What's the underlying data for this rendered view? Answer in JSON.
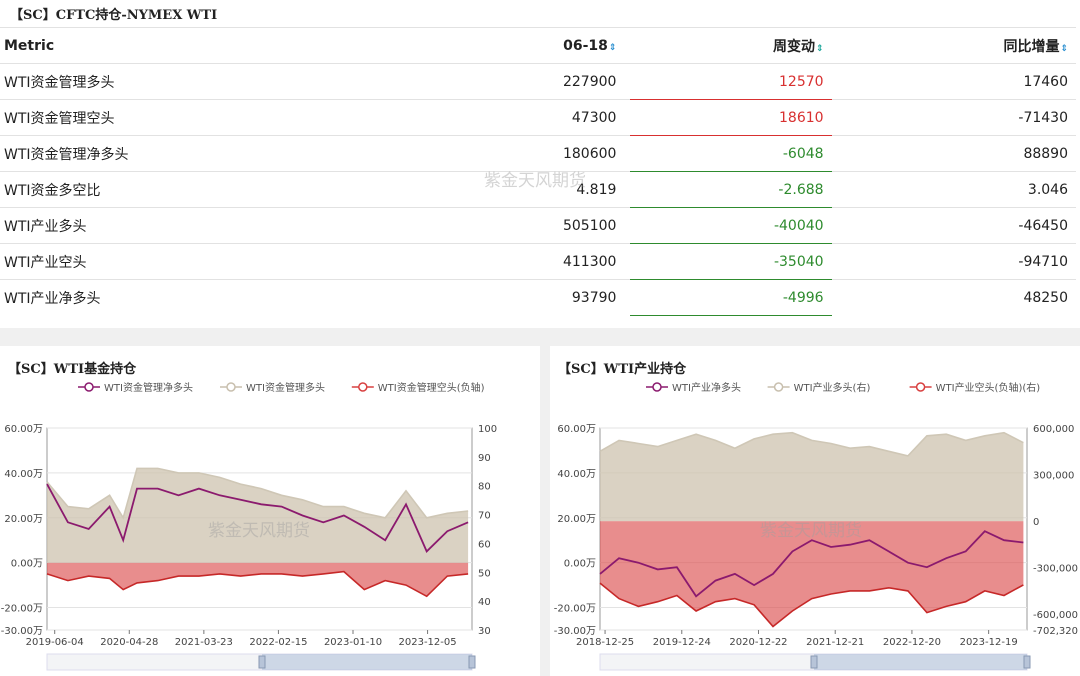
{
  "table": {
    "title": "【SC】CFTC持仓-NYMEX WTI",
    "columns": [
      "Metric",
      "06-18",
      "周变动",
      "同比增量"
    ],
    "rows": [
      {
        "metric": "WTI资金管理多头",
        "value": "227900",
        "change": "12570",
        "change_color": "#d83030",
        "yoy": "17460"
      },
      {
        "metric": "WTI资金管理空头",
        "value": "47300",
        "change": "18610",
        "change_color": "#d83030",
        "yoy": "-71430"
      },
      {
        "metric": "WTI资金管理净多头",
        "value": "180600",
        "change": "-6048",
        "change_color": "#2e8b2e",
        "yoy": "88890"
      },
      {
        "metric": "WTI资金多空比",
        "value": "4.819",
        "change": "-2.688",
        "change_color": "#2e8b2e",
        "yoy": "3.046"
      },
      {
        "metric": "WTI产业多头",
        "value": "505100",
        "change": "-40040",
        "change_color": "#2e8b2e",
        "yoy": "-46450"
      },
      {
        "metric": "WTI产业空头",
        "value": "411300",
        "change": "-35040",
        "change_color": "#2e8b2e",
        "yoy": "-94710"
      },
      {
        "metric": "WTI产业净多头",
        "value": "93790",
        "change": "-4996",
        "change_color": "#2e8b2e",
        "yoy": "48250"
      }
    ],
    "watermark": "紫金天风期货"
  },
  "chart_data": [
    {
      "type": "area",
      "title": "【SC】WTI基金持仓",
      "watermark": "紫金天风期货",
      "x_ticks": [
        "2019-06-04",
        "2020-04-28",
        "2021-03-23",
        "2022-02-15",
        "2023-01-10",
        "2023-12-05"
      ],
      "x_range": [
        "2019-05-01",
        "2024-06-18"
      ],
      "left_axis": {
        "ticks": [
          "60.00万",
          "40.00万",
          "20.00万",
          "0.00万",
          "-20.00万",
          "-30.00万"
        ],
        "values": [
          60,
          40,
          20,
          0,
          -20,
          -30
        ],
        "range": [
          -30,
          60
        ],
        "unit": "万"
      },
      "right_axis": {
        "ticks": [
          "100",
          "90",
          "80",
          "70",
          "60",
          "50",
          "40",
          "30"
        ],
        "range": [
          30,
          100
        ]
      },
      "series": [
        {
          "name": "WTI资金管理净多头",
          "color": "#8b1a6e",
          "axis": "left",
          "kind": "line",
          "x": [
            "2019-05",
            "2019-08",
            "2019-11",
            "2020-02",
            "2020-04",
            "2020-06",
            "2020-09",
            "2020-12",
            "2021-03",
            "2021-06",
            "2021-09",
            "2021-12",
            "2022-03",
            "2022-06",
            "2022-09",
            "2022-12",
            "2023-03",
            "2023-06",
            "2023-09",
            "2023-12",
            "2024-03",
            "2024-06"
          ],
          "y": [
            35,
            18,
            15,
            25,
            10,
            33,
            33,
            30,
            33,
            30,
            28,
            26,
            25,
            21,
            18,
            21,
            16,
            10,
            26,
            5,
            14,
            18
          ]
        },
        {
          "name": "WTI资金管理多头",
          "color": "#d8cfc0",
          "axis": "left",
          "kind": "area",
          "x": [
            "2019-05",
            "2019-08",
            "2019-11",
            "2020-02",
            "2020-04",
            "2020-06",
            "2020-09",
            "2020-12",
            "2021-03",
            "2021-06",
            "2021-09",
            "2021-12",
            "2022-03",
            "2022-06",
            "2022-09",
            "2022-12",
            "2023-03",
            "2023-06",
            "2023-09",
            "2023-12",
            "2024-03",
            "2024-06"
          ],
          "y": [
            36,
            25,
            24,
            30,
            20,
            42,
            42,
            40,
            40,
            38,
            35,
            33,
            30,
            28,
            25,
            25,
            22,
            20,
            32,
            20,
            22,
            23
          ]
        },
        {
          "name": "WTI资金管理空头(负轴)",
          "color": "#e07070",
          "axis": "left",
          "kind": "area",
          "x": [
            "2019-05",
            "2019-08",
            "2019-11",
            "2020-02",
            "2020-04",
            "2020-06",
            "2020-09",
            "2020-12",
            "2021-03",
            "2021-06",
            "2021-09",
            "2021-12",
            "2022-03",
            "2022-06",
            "2022-09",
            "2022-12",
            "2023-03",
            "2023-06",
            "2023-09",
            "2023-12",
            "2024-03",
            "2024-06"
          ],
          "y": [
            -5,
            -8,
            -6,
            -7,
            -12,
            -9,
            -8,
            -6,
            -6,
            -5,
            -6,
            -5,
            -5,
            -6,
            -5,
            -4,
            -12,
            -8,
            -10,
            -15,
            -6,
            -5
          ]
        }
      ]
    },
    {
      "type": "area",
      "title": "【SC】WTI产业持仓",
      "watermark": "紫金天风期货",
      "x_ticks": [
        "2018-12-25",
        "2019-12-24",
        "2020-12-22",
        "2021-12-21",
        "2022-12-20",
        "2023-12-19"
      ],
      "x_range": [
        "2018-12-01",
        "2024-06-18"
      ],
      "left_axis": {
        "ticks": [
          "60.00万",
          "40.00万",
          "20.00万",
          "0.00万",
          "-20.00万",
          "-30.00万"
        ],
        "values": [
          60,
          40,
          20,
          0,
          -20,
          -30
        ],
        "range": [
          -30,
          60
        ],
        "unit": "万"
      },
      "right_axis": {
        "ticks": [
          "600,000",
          "300,000",
          "0",
          "-300,000",
          "-600,000",
          "-702,320"
        ],
        "values": [
          600000,
          300000,
          0,
          -300000,
          -600000,
          -702320
        ],
        "range": [
          -702320,
          600000
        ]
      },
      "series": [
        {
          "name": "WTI产业净多头",
          "color": "#8b1a6e",
          "axis": "left",
          "kind": "line",
          "x": [
            "2018-12",
            "2019-03",
            "2019-06",
            "2019-09",
            "2019-12",
            "2020-03",
            "2020-06",
            "2020-09",
            "2020-12",
            "2021-03",
            "2021-06",
            "2021-09",
            "2021-12",
            "2022-03",
            "2022-06",
            "2022-09",
            "2022-12",
            "2023-03",
            "2023-06",
            "2023-09",
            "2023-12",
            "2024-03",
            "2024-06"
          ],
          "y": [
            -5,
            2,
            0,
            -3,
            -2,
            -15,
            -8,
            -5,
            -10,
            -5,
            5,
            10,
            7,
            8,
            10,
            5,
            0,
            -2,
            2,
            5,
            14,
            10,
            9
          ]
        },
        {
          "name": "WTI产业多头(右)",
          "color": "#d8cfc0",
          "axis": "right",
          "kind": "area",
          "x": [
            "2018-12",
            "2019-03",
            "2019-06",
            "2019-09",
            "2019-12",
            "2020-03",
            "2020-06",
            "2020-09",
            "2020-12",
            "2021-03",
            "2021-06",
            "2021-09",
            "2021-12",
            "2022-03",
            "2022-06",
            "2022-09",
            "2022-12",
            "2023-03",
            "2023-06",
            "2023-09",
            "2023-12",
            "2024-03",
            "2024-06"
          ],
          "y": [
            450000,
            520000,
            500000,
            480000,
            520000,
            560000,
            520000,
            470000,
            530000,
            560000,
            570000,
            520000,
            500000,
            470000,
            480000,
            450000,
            420000,
            550000,
            560000,
            520000,
            550000,
            570000,
            505100
          ]
        },
        {
          "name": "WTI产业空头(负轴)(右)",
          "color": "#e07070",
          "axis": "right",
          "kind": "area",
          "x": [
            "2018-12",
            "2019-03",
            "2019-06",
            "2019-09",
            "2019-12",
            "2020-03",
            "2020-06",
            "2020-09",
            "2020-12",
            "2021-03",
            "2021-06",
            "2021-09",
            "2021-12",
            "2022-03",
            "2022-06",
            "2022-09",
            "2022-12",
            "2023-03",
            "2023-06",
            "2023-09",
            "2023-12",
            "2024-03",
            "2024-06"
          ],
          "y": [
            -400000,
            -500000,
            -550000,
            -520000,
            -480000,
            -580000,
            -520000,
            -500000,
            -540000,
            -680000,
            -580000,
            -500000,
            -470000,
            -450000,
            -450000,
            -430000,
            -450000,
            -590000,
            -550000,
            -520000,
            -450000,
            -480000,
            -411300
          ]
        }
      ]
    }
  ]
}
